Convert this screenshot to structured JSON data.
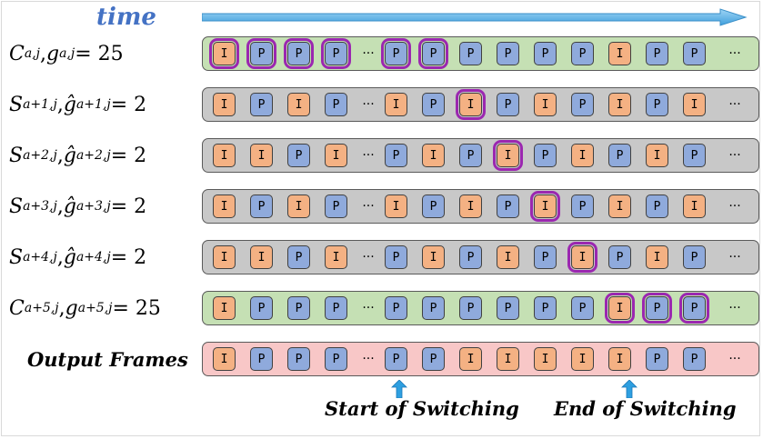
{
  "time_label": "time",
  "rows": [
    {
      "label": "C_{a,j}, g_{a,j} = 25",
      "background": "green",
      "frames_a": [
        "I",
        "P",
        "P",
        "P"
      ],
      "frames_b": [
        "P",
        "P",
        "P",
        "P",
        "P",
        "P",
        "I",
        "P",
        "P"
      ],
      "highlighted": [
        0,
        1,
        2,
        3,
        4,
        5
      ]
    },
    {
      "label": "S_{a+1,j}, ĝ_{a+1,j} = 2",
      "background": "gray",
      "frames_a": [
        "I",
        "P",
        "I",
        "P"
      ],
      "frames_b": [
        "I",
        "P",
        "I",
        "P",
        "I",
        "P",
        "I",
        "P",
        "I"
      ],
      "highlighted": [
        6
      ]
    },
    {
      "label": "S_{a+2,j}, ĝ_{a+2,j} = 2",
      "background": "gray",
      "frames_a": [
        "I",
        "I",
        "P",
        "I"
      ],
      "frames_b": [
        "P",
        "I",
        "P",
        "I",
        "P",
        "I",
        "P",
        "I",
        "P"
      ],
      "highlighted": [
        7
      ]
    },
    {
      "label": "S_{a+3,j}, ĝ_{a+3,j} = 2",
      "background": "gray",
      "frames_a": [
        "I",
        "P",
        "I",
        "P"
      ],
      "frames_b": [
        "I",
        "P",
        "I",
        "P",
        "I",
        "P",
        "I",
        "P",
        "I"
      ],
      "highlighted": [
        8
      ]
    },
    {
      "label": "S_{a+4,j}, ĝ_{a+4,j} = 2",
      "background": "gray",
      "frames_a": [
        "I",
        "I",
        "P",
        "I"
      ],
      "frames_b": [
        "P",
        "I",
        "P",
        "I",
        "P",
        "I",
        "P",
        "I",
        "P"
      ],
      "highlighted": [
        9
      ]
    },
    {
      "label": "C_{a+5,j}, g_{a+5,j} = 25",
      "background": "green",
      "frames_a": [
        "I",
        "P",
        "P",
        "P"
      ],
      "frames_b": [
        "P",
        "P",
        "P",
        "P",
        "P",
        "P",
        "I",
        "P",
        "P"
      ],
      "highlighted": [
        10,
        11,
        12
      ]
    },
    {
      "label": "Output Frames",
      "background": "pink",
      "frames_a": [
        "I",
        "P",
        "P",
        "P"
      ],
      "frames_b": [
        "P",
        "P",
        "I",
        "I",
        "I",
        "I",
        "I",
        "P",
        "P"
      ],
      "highlighted": []
    }
  ],
  "dots": "···",
  "start_label": "Start of Switching",
  "end_label": "End of Switching",
  "colors": {
    "I_frame": "#f4b183",
    "P_frame": "#8faadc",
    "highlight": "#9b27b0",
    "time_arrow": "#5bb4e8",
    "switch_arrow": "#2e9fe0"
  }
}
